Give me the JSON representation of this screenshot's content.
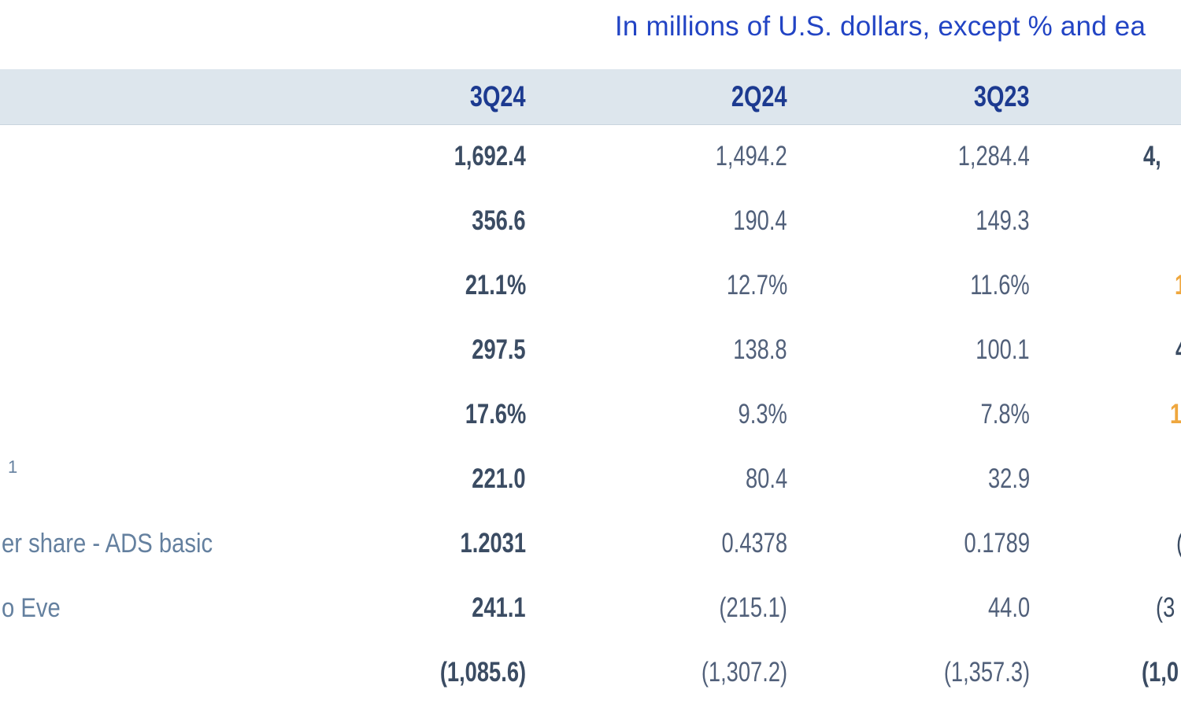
{
  "header_note": "In millions of U.S. dollars, except % and ea",
  "colors": {
    "title_blue": "#2244c4",
    "header_band_bg": "#dde6ed",
    "header_text": "#1c3a90",
    "value_bold": "#3b4c63",
    "value_regular": "#51607a",
    "label_steel_blue": "#64809f",
    "accent_orange": "#efa73e"
  },
  "table": {
    "columns": [
      "3Q24",
      "2Q24",
      "3Q23"
    ],
    "fourth_column_clipped": true,
    "rows": [
      {
        "label": "",
        "sup": "",
        "values": [
          "1,692.4",
          "1,494.2",
          "1,284.4"
        ],
        "col4_fragment": {
          "text": "4,",
          "color": "dark",
          "bold": true
        }
      },
      {
        "label": "",
        "sup": "",
        "values": [
          "356.6",
          "190.4",
          "149.3"
        ],
        "col4_fragment": null
      },
      {
        "label": "",
        "sup": "",
        "values": [
          "21.1%",
          "12.7%",
          "11.6%"
        ],
        "col4_fragment": {
          "text": "1",
          "color": "orange",
          "bold": true
        }
      },
      {
        "label": "",
        "sup": "",
        "values": [
          "297.5",
          "138.8",
          "100.1"
        ],
        "col4_fragment": {
          "text": "4",
          "color": "dark",
          "bold": true
        }
      },
      {
        "label": "",
        "sup": "",
        "values": [
          "17.6%",
          "9.3%",
          "7.8%"
        ],
        "col4_fragment": {
          "text": "1",
          "color": "orange",
          "bold": true
        }
      },
      {
        "label": "",
        "sup": "1",
        "values": [
          "221.0",
          "80.4",
          "32.9"
        ],
        "col4_fragment": null
      },
      {
        "label": "er share - ADS basic",
        "sup": "",
        "values": [
          "1.2031",
          "0.4378",
          "0.1789"
        ],
        "col4_fragment": {
          "text": "(",
          "color": "dark",
          "bold": false
        }
      },
      {
        "label": "o Eve",
        "sup": "",
        "values": [
          "241.1",
          "(215.1)",
          "44.0"
        ],
        "col4_fragment": {
          "text": "(3",
          "color": "dark",
          "bold": false
        }
      },
      {
        "label": "",
        "sup": "",
        "values": [
          "(1,085.6)",
          "(1,307.2)",
          "(1,357.3)"
        ],
        "col4_fragment": {
          "text": "(1,0",
          "color": "dark",
          "bold": true
        }
      }
    ]
  }
}
